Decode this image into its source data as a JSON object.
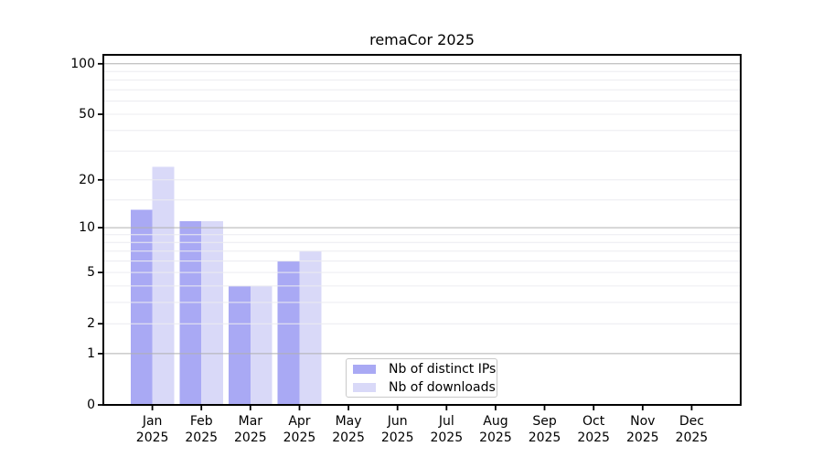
{
  "chart_data": {
    "type": "bar",
    "title": "remaCor 2025",
    "categories": [
      "Jan",
      "Feb",
      "Mar",
      "Apr",
      "May",
      "Jun",
      "Jul",
      "Aug",
      "Sep",
      "Oct",
      "Nov",
      "Dec"
    ],
    "category_year": "2025",
    "series": [
      {
        "name": "Nb of distinct IPs",
        "color": "#a9a9f4",
        "values": [
          13,
          11,
          4,
          6,
          0,
          0,
          0,
          0,
          0,
          0,
          0,
          0
        ]
      },
      {
        "name": "Nb of downloads",
        "color": "#d9d9f8",
        "values": [
          24,
          11,
          4,
          7,
          0,
          0,
          0,
          0,
          0,
          0,
          0,
          0
        ]
      }
    ],
    "xlabel": "",
    "ylabel": "",
    "yaxis": {
      "scale": "log1p",
      "ylim": [
        0,
        113
      ],
      "ticks": [
        0,
        1,
        2,
        5,
        10,
        20,
        50,
        100
      ],
      "major_gridlines": [
        1,
        10,
        100
      ],
      "minor_gridlines": [
        2,
        3,
        4,
        5,
        6,
        7,
        8,
        9,
        15,
        20,
        30,
        40,
        50,
        60,
        70,
        80,
        90
      ]
    },
    "grid": true,
    "legend": {
      "position": "lower center"
    }
  }
}
